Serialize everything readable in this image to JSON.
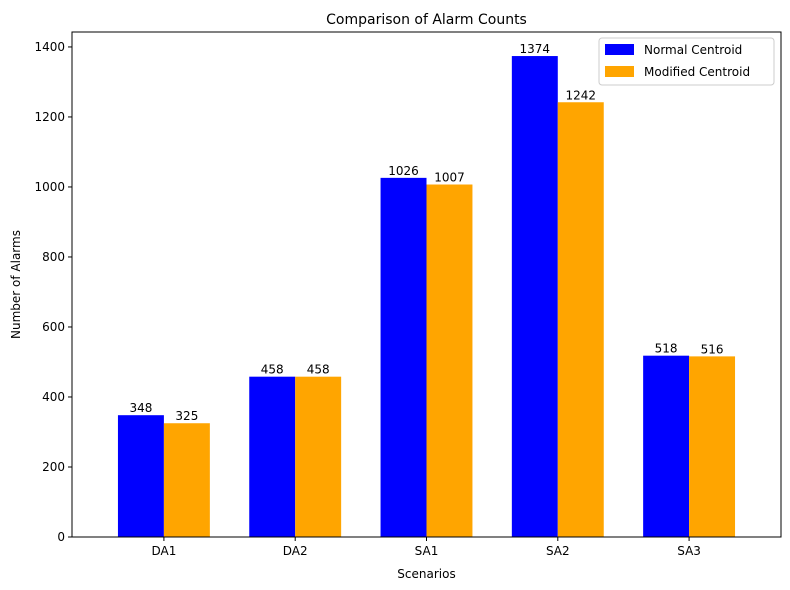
{
  "chart_data": {
    "type": "bar",
    "title": "Comparison of Alarm Counts",
    "xlabel": "Scenarios",
    "ylabel": "Number of Alarms",
    "categories": [
      "DA1",
      "DA2",
      "SA1",
      "SA2",
      "SA3"
    ],
    "series": [
      {
        "name": "Normal Centroid",
        "color": "#0000ff",
        "values": [
          348,
          458,
          1026,
          1374,
          518
        ]
      },
      {
        "name": "Modified Centroid",
        "color": "#ffa500",
        "values": [
          325,
          458,
          1007,
          1242,
          516
        ]
      }
    ],
    "ylim": [
      0,
      1442.7
    ],
    "yticks": [
      0,
      200,
      400,
      600,
      800,
      1000,
      1200,
      1400
    ],
    "grid": false,
    "legend_position": "top-right"
  }
}
